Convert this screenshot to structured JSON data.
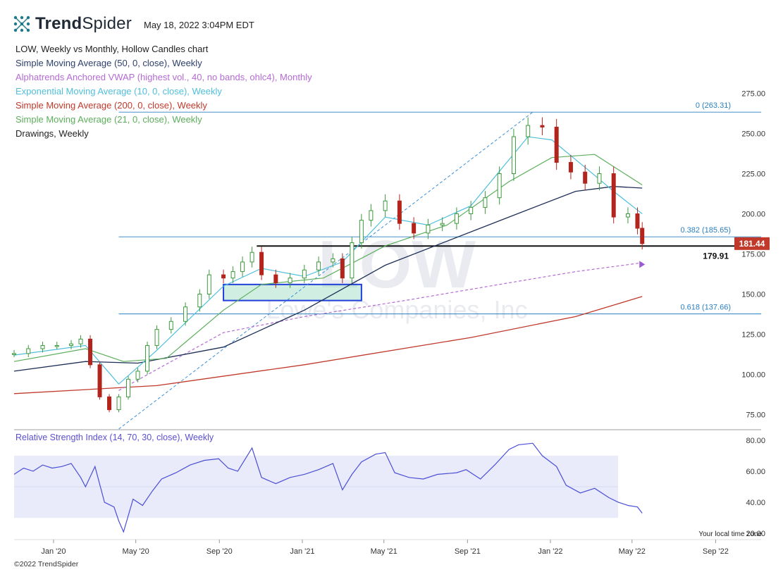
{
  "header": {
    "logo_text_bold": "Trend",
    "logo_text_light": "Spider",
    "timestamp": "May 18, 2022 3:04PM EDT"
  },
  "legend": [
    {
      "label": "LOW, Weekly vs Monthly, Hollow Candles chart",
      "color": "#222222"
    },
    {
      "label": "Simple Moving Average (50, 0, close), Weekly",
      "color": "#2d3f6b"
    },
    {
      "label": "Alphatrends Anchored VWAP (highest vol., 40, no bands, ohlc4), Monthly",
      "color": "#b56bd6"
    },
    {
      "label": "Exponential Moving Average (10, 0, close), Weekly",
      "color": "#4fbfdc"
    },
    {
      "label": "Simple Moving Average (200, 0, close), Weekly",
      "color": "#c0392b"
    },
    {
      "label": "Simple Moving Average (21, 0, close), Weekly",
      "color": "#5cae5c"
    },
    {
      "label": "Drawings, Weekly",
      "color": "#222222"
    }
  ],
  "rsi_title": "Relative Strength Index (14, 70, 30, close), Weekly",
  "timezone_note": "Your local time zone",
  "copyright": "©2022 TrendSpider",
  "watermark": {
    "ticker": "LOW",
    "company": "Lowe's Companies, Inc"
  },
  "chart_data": {
    "type": "candlestick",
    "ticker": "LOW",
    "price_axis": {
      "ticks": [
        "75.00",
        "100.00",
        "125.00",
        "150.00",
        "175.00",
        "200.00",
        "225.00",
        "250.00",
        "275.00"
      ],
      "ylim": [
        66,
        284
      ]
    },
    "rsi_axis": {
      "ticks": [
        "20.00",
        "40.00",
        "60.00",
        "80.00"
      ],
      "ylim": [
        16,
        84
      ],
      "band": [
        30,
        70
      ]
    },
    "x_ticks": [
      "Jan '20",
      "May '20",
      "Sep '20",
      "Jan '21",
      "May '21",
      "Sep '21",
      "Jan '22",
      "May '22",
      "Sep '22"
    ],
    "x_tick_dates": [
      "2020-01-01",
      "2020-05-01",
      "2020-09-01",
      "2021-01-01",
      "2021-05-01",
      "2021-09-01",
      "2022-01-01",
      "2022-05-01",
      "2022-09-01"
    ],
    "x_range": [
      "2019-11-04",
      "2022-11-07"
    ],
    "last_price": {
      "label": "181.44",
      "value": 181.44,
      "color": "#c0392b"
    },
    "horizontal_lines": [
      {
        "label": "179.91",
        "value": 179.91,
        "color": "#111111",
        "from": "2020-10-26",
        "to": "2022-11-07"
      },
      {
        "label": "0 (263.31)",
        "value": 263.31,
        "color": "#2a7fbf",
        "from": "2020-04-06",
        "to": "2022-11-07"
      },
      {
        "label": "0.382 (185.65)",
        "value": 185.65,
        "color": "#2a7fbf",
        "from": "2020-04-06",
        "to": "2022-11-07"
      },
      {
        "label": "0.618 (137.66)",
        "value": 137.66,
        "color": "#2a7fbf",
        "from": "2020-04-06",
        "to": "2022-11-07"
      }
    ],
    "fib_trendline": {
      "from_date": "2020-04-06",
      "from_value": 66,
      "to_date": "2021-12-06",
      "to_value": 263.31
    },
    "support_box": {
      "from_date": "2020-09-07",
      "to_date": "2021-03-29",
      "low": 146,
      "high": 156
    },
    "vwap_marker": {
      "date": "2022-05-16",
      "value": 168.5
    },
    "weekly_close": [
      [
        "2019-11-04",
        113
      ],
      [
        "2019-11-25",
        116
      ],
      [
        "2019-12-16",
        118
      ],
      [
        "2020-01-06",
        118
      ],
      [
        "2020-01-27",
        119
      ],
      [
        "2020-02-10",
        122
      ],
      [
        "2020-02-24",
        106
      ],
      [
        "2020-03-09",
        86
      ],
      [
        "2020-03-23",
        78
      ],
      [
        "2020-04-06",
        86
      ],
      [
        "2020-04-20",
        97
      ],
      [
        "2020-05-04",
        102
      ],
      [
        "2020-05-18",
        118
      ],
      [
        "2020-06-01",
        128
      ],
      [
        "2020-06-22",
        133
      ],
      [
        "2020-07-13",
        142
      ],
      [
        "2020-08-03",
        150
      ],
      [
        "2020-08-17",
        162
      ],
      [
        "2020-09-07",
        160
      ],
      [
        "2020-09-21",
        164
      ],
      [
        "2020-10-05",
        170
      ],
      [
        "2020-10-19",
        176
      ],
      [
        "2020-11-02",
        162
      ],
      [
        "2020-11-23",
        157
      ],
      [
        "2020-12-14",
        160
      ],
      [
        "2021-01-04",
        165
      ],
      [
        "2021-01-25",
        170
      ],
      [
        "2021-02-15",
        172
      ],
      [
        "2021-03-01",
        160
      ],
      [
        "2021-03-15",
        182
      ],
      [
        "2021-03-29",
        196
      ],
      [
        "2021-04-12",
        202
      ],
      [
        "2021-05-03",
        208
      ],
      [
        "2021-05-24",
        194
      ],
      [
        "2021-06-14",
        188
      ],
      [
        "2021-07-05",
        193
      ],
      [
        "2021-07-26",
        194
      ],
      [
        "2021-08-16",
        200
      ],
      [
        "2021-09-06",
        204
      ],
      [
        "2021-09-27",
        210
      ],
      [
        "2021-10-18",
        225
      ],
      [
        "2021-11-08",
        248
      ],
      [
        "2021-11-29",
        255
      ],
      [
        "2021-12-20",
        254
      ],
      [
        "2022-01-10",
        232
      ],
      [
        "2022-01-31",
        226
      ],
      [
        "2022-02-21",
        219
      ],
      [
        "2022-03-14",
        225
      ],
      [
        "2022-04-04",
        198
      ],
      [
        "2022-04-25",
        200
      ],
      [
        "2022-05-09",
        191
      ],
      [
        "2022-05-16",
        181.44
      ]
    ],
    "sma_50": [
      [
        "2019-11-04",
        102
      ],
      [
        "2020-02-17",
        108
      ],
      [
        "2020-05-04",
        107
      ],
      [
        "2020-09-07",
        117
      ],
      [
        "2021-01-04",
        140
      ],
      [
        "2021-05-03",
        168
      ],
      [
        "2021-08-02",
        183
      ],
      [
        "2021-11-01",
        198
      ],
      [
        "2022-02-07",
        214
      ],
      [
        "2022-04-04",
        217
      ],
      [
        "2022-05-16",
        216
      ]
    ],
    "sma_200": [
      [
        "2019-11-04",
        88
      ],
      [
        "2020-06-01",
        93
      ],
      [
        "2021-01-04",
        106
      ],
      [
        "2021-09-06",
        123
      ],
      [
        "2022-02-07",
        136
      ],
      [
        "2022-05-16",
        148.5
      ]
    ],
    "sma_21": [
      [
        "2019-11-04",
        108
      ],
      [
        "2020-02-17",
        116
      ],
      [
        "2020-04-13",
        108
      ],
      [
        "2020-06-15",
        110
      ],
      [
        "2020-09-07",
        140
      ],
      [
        "2020-11-02",
        156
      ],
      [
        "2021-02-01",
        160
      ],
      [
        "2021-05-03",
        180
      ],
      [
        "2021-08-02",
        193
      ],
      [
        "2021-11-01",
        220
      ],
      [
        "2022-01-03",
        235
      ],
      [
        "2022-03-07",
        237
      ],
      [
        "2022-05-16",
        218
      ]
    ],
    "ema_10": [
      [
        "2019-11-04",
        112
      ],
      [
        "2020-02-17",
        118
      ],
      [
        "2020-04-06",
        94
      ],
      [
        "2020-06-01",
        115
      ],
      [
        "2020-09-07",
        155
      ],
      [
        "2020-11-02",
        166
      ],
      [
        "2021-01-04",
        161
      ],
      [
        "2021-03-01",
        170
      ],
      [
        "2021-05-03",
        198
      ],
      [
        "2021-07-05",
        193
      ],
      [
        "2021-09-06",
        205
      ],
      [
        "2021-11-29",
        248
      ],
      [
        "2022-01-03",
        246
      ],
      [
        "2022-03-07",
        224
      ],
      [
        "2022-04-04",
        214
      ],
      [
        "2022-05-16",
        200
      ]
    ],
    "vwap": [
      [
        "2020-04-06",
        90
      ],
      [
        "2020-09-07",
        126
      ],
      [
        "2021-01-04",
        136
      ],
      [
        "2021-06-01",
        146
      ],
      [
        "2021-11-01",
        157
      ],
      [
        "2022-02-07",
        164
      ],
      [
        "2022-05-16",
        169.5
      ]
    ],
    "rsi": [
      [
        "2019-11-04",
        58
      ],
      [
        "2019-11-18",
        62
      ],
      [
        "2019-12-02",
        60
      ],
      [
        "2019-12-16",
        64
      ],
      [
        "2019-12-30",
        62
      ],
      [
        "2020-01-13",
        63
      ],
      [
        "2020-01-27",
        65
      ],
      [
        "2020-02-10",
        56
      ],
      [
        "2020-02-17",
        50
      ],
      [
        "2020-03-02",
        63
      ],
      [
        "2020-03-16",
        40
      ],
      [
        "2020-03-30",
        37
      ],
      [
        "2020-04-06",
        28
      ],
      [
        "2020-04-13",
        21
      ],
      [
        "2020-04-27",
        42
      ],
      [
        "2020-05-11",
        38
      ],
      [
        "2020-05-25",
        47
      ],
      [
        "2020-06-08",
        55
      ],
      [
        "2020-06-29",
        59
      ],
      [
        "2020-07-20",
        64
      ],
      [
        "2020-08-10",
        67
      ],
      [
        "2020-08-31",
        68
      ],
      [
        "2020-09-14",
        62
      ],
      [
        "2020-09-28",
        60
      ],
      [
        "2020-10-19",
        75
      ],
      [
        "2020-11-02",
        56
      ],
      [
        "2020-11-23",
        52
      ],
      [
        "2020-12-14",
        56
      ],
      [
        "2021-01-04",
        58
      ],
      [
        "2021-01-25",
        61
      ],
      [
        "2021-02-15",
        65
      ],
      [
        "2021-03-01",
        48
      ],
      [
        "2021-03-15",
        58
      ],
      [
        "2021-03-29",
        66
      ],
      [
        "2021-04-19",
        71
      ],
      [
        "2021-05-03",
        72
      ],
      [
        "2021-05-17",
        59
      ],
      [
        "2021-06-07",
        56
      ],
      [
        "2021-06-28",
        55
      ],
      [
        "2021-07-19",
        58
      ],
      [
        "2021-08-16",
        59
      ],
      [
        "2021-08-30",
        61
      ],
      [
        "2021-09-20",
        55
      ],
      [
        "2021-10-11",
        64
      ],
      [
        "2021-11-01",
        74
      ],
      [
        "2021-11-15",
        77
      ],
      [
        "2021-12-06",
        78
      ],
      [
        "2021-12-20",
        70
      ],
      [
        "2022-01-10",
        63
      ],
      [
        "2022-01-24",
        51
      ],
      [
        "2022-02-14",
        46
      ],
      [
        "2022-03-07",
        49
      ],
      [
        "2022-03-28",
        43
      ],
      [
        "2022-04-11",
        40
      ],
      [
        "2022-04-25",
        38
      ],
      [
        "2022-05-09",
        37
      ],
      [
        "2022-05-16",
        33
      ]
    ]
  }
}
